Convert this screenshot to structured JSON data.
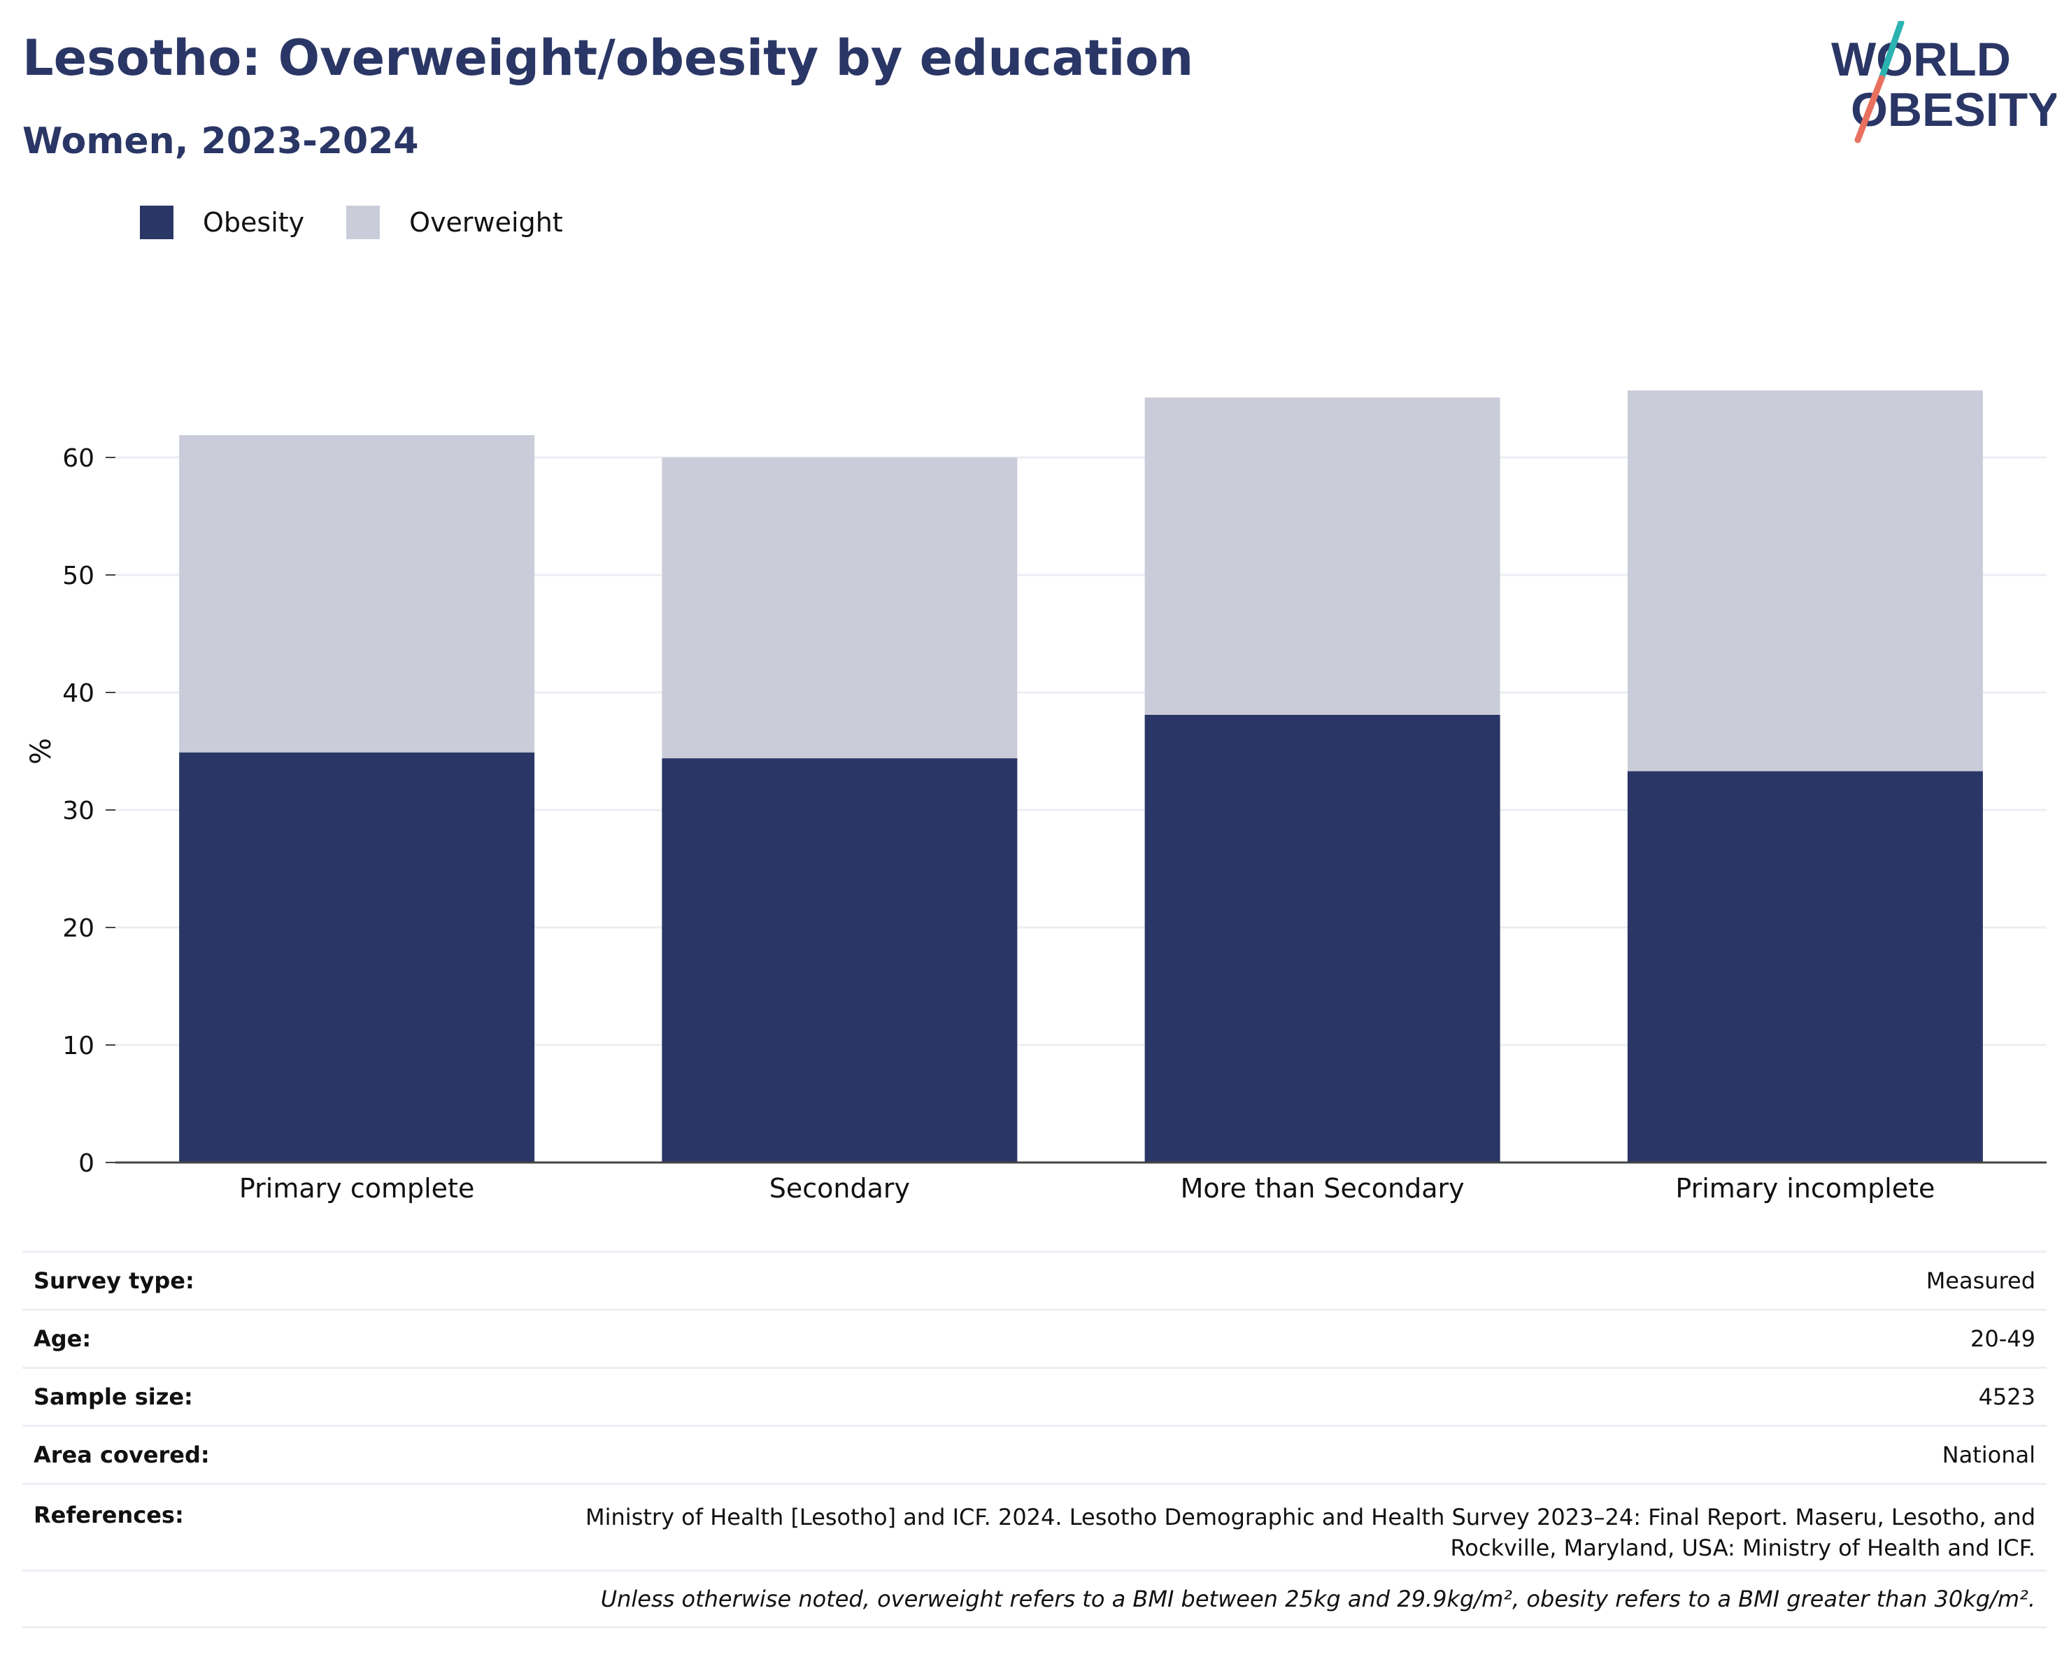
{
  "header": {
    "title": "Lesotho: Overweight/obesity by education",
    "subtitle": "Women, 2023-2024"
  },
  "logo": {
    "line1": "WORLD",
    "line2": "OBESITY",
    "colors": {
      "text": "#2a3665",
      "slash_top": "#2bb3b1",
      "slash_bottom": "#e8705f"
    }
  },
  "colors": {
    "obesity": "#2a3665",
    "overweight": "#cacdd9",
    "grid": "#eceef4",
    "axis": "#444444"
  },
  "legend": [
    {
      "label": "Obesity",
      "color": "#2a3665"
    },
    {
      "label": "Overweight",
      "color": "#cacdd9"
    }
  ],
  "chart_data": {
    "type": "bar",
    "stacked": true,
    "categories": [
      "Primary complete",
      "Secondary",
      "More than Secondary",
      "Primary incomplete"
    ],
    "series": [
      {
        "name": "Obesity",
        "values": [
          34.9,
          34.4,
          38.1,
          33.3
        ]
      },
      {
        "name": "Overweight",
        "values": [
          27.0,
          25.6,
          27.0,
          32.4
        ]
      }
    ],
    "ylabel": "%",
    "ylim": [
      0,
      70
    ],
    "yticks": [
      0,
      10,
      20,
      30,
      40,
      50,
      60
    ],
    "grid": true,
    "legend_position": "top-left"
  },
  "info": {
    "survey_type": {
      "label": "Survey type:",
      "value": "Measured"
    },
    "age": {
      "label": "Age:",
      "value": "20-49"
    },
    "sample_size": {
      "label": "Sample size:",
      "value": "4523"
    },
    "area_covered": {
      "label": "Area covered:",
      "value": "National"
    },
    "references": {
      "label": "References:",
      "value": "Ministry of Health [Lesotho] and ICF. 2024. Lesotho Demographic and Health Survey 2023–24: Final Report. Maseru, Lesotho, and\nRockville, Maryland, USA: Ministry of Health and ICF."
    },
    "note": "Unless otherwise noted, overweight refers to a BMI between 25kg and 29.9kg/m², obesity refers to a BMI greater than 30kg/m²."
  }
}
